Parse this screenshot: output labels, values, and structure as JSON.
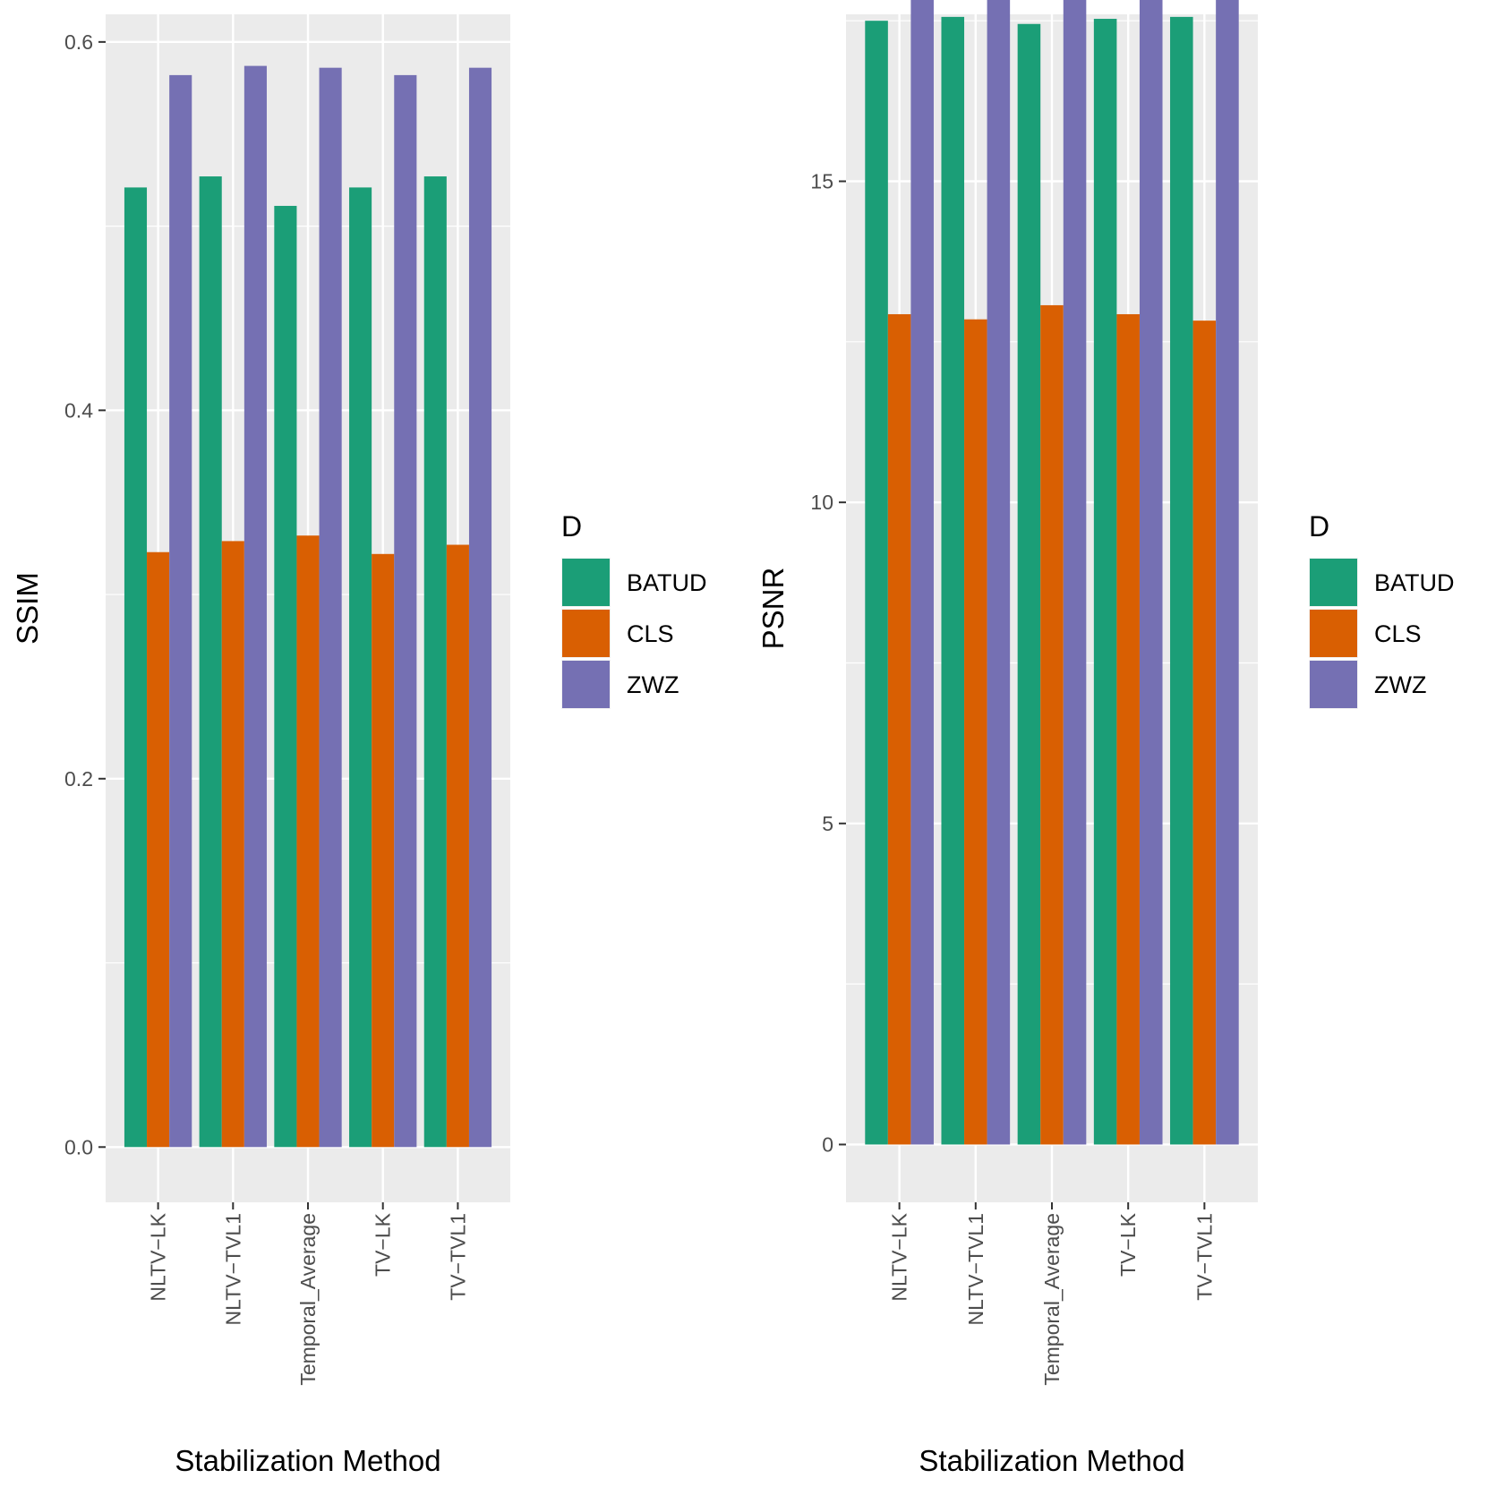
{
  "colors": {
    "panel_bg": "#EBEBEB",
    "grid_major": "#FFFFFF",
    "tick": "#333333",
    "BATUD": "#1B9E77",
    "CLS": "#D95F02",
    "ZWZ": "#7570B3"
  },
  "chart_data": [
    {
      "type": "bar",
      "xlabel": "Stabilization Method",
      "ylabel": "SSIM",
      "ylim": [
        -0.03,
        0.615
      ],
      "yticks": [
        0.0,
        0.2,
        0.4,
        0.6
      ],
      "ytick_labels": [
        "0.0",
        "0.2",
        "0.4",
        "0.6"
      ],
      "categories": [
        "NLTV−LK",
        "NLTV−TVL1",
        "Temporal_Average",
        "TV−LK",
        "TV−TVL1"
      ],
      "series": [
        {
          "name": "BATUD",
          "values": [
            0.521,
            0.527,
            0.511,
            0.521,
            0.527
          ]
        },
        {
          "name": "CLS",
          "values": [
            0.323,
            0.329,
            0.332,
            0.322,
            0.327
          ]
        },
        {
          "name": "ZWZ",
          "values": [
            0.582,
            0.587,
            0.586,
            0.582,
            0.586
          ]
        }
      ],
      "legend": {
        "title": "D",
        "position": "right",
        "labels": [
          "BATUD",
          "CLS",
          "ZWZ"
        ]
      },
      "grid": true
    },
    {
      "type": "bar",
      "xlabel": "Stabilization Method",
      "ylabel": "PSNR",
      "ylim": [
        -0.9,
        17.6
      ],
      "yticks": [
        0,
        5,
        10,
        15
      ],
      "ytick_labels": [
        "0",
        "5",
        "10",
        "15"
      ],
      "categories": [
        "NLTV−LK",
        "NLTV−TVL1",
        "Temporal_Average",
        "TV−LK",
        "TV−TVL1"
      ],
      "series": [
        {
          "name": "BATUD",
          "values": [
            17.5,
            17.56,
            17.45,
            17.53,
            17.56
          ]
        },
        {
          "name": "CLS",
          "values": [
            12.93,
            12.85,
            13.07,
            12.93,
            12.83
          ]
        },
        {
          "name": "ZWZ",
          "values": [
            18.16,
            18.14,
            18.33,
            18.16,
            18.12
          ]
        }
      ],
      "legend": {
        "title": "D",
        "position": "right",
        "labels": [
          "BATUD",
          "CLS",
          "ZWZ"
        ]
      },
      "grid": true
    }
  ]
}
